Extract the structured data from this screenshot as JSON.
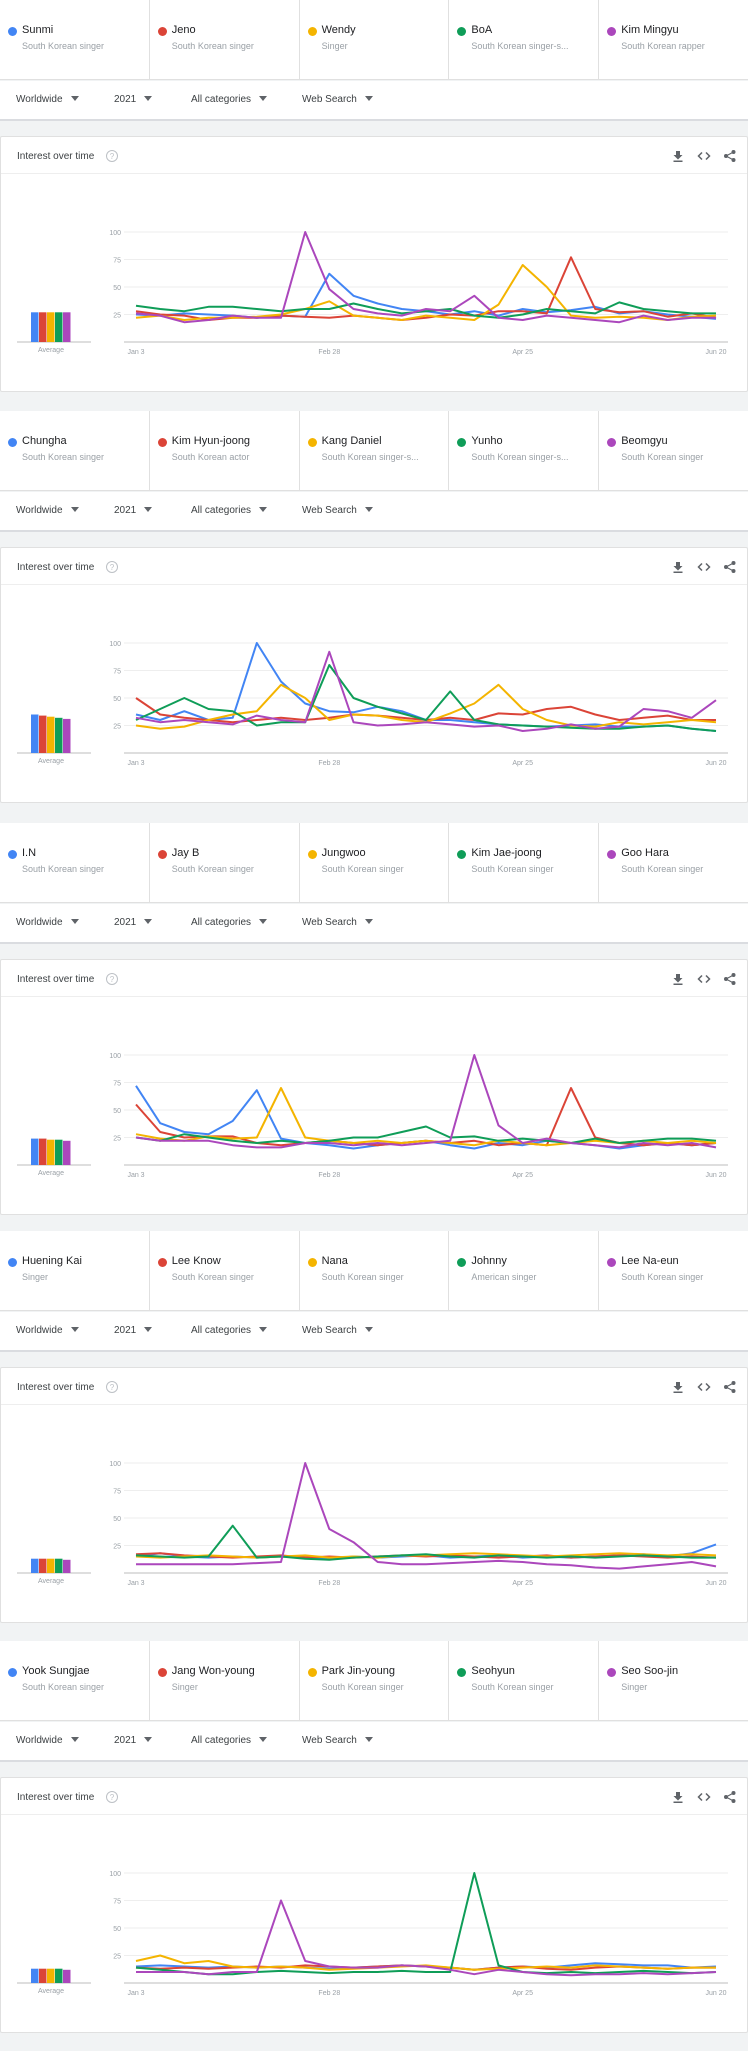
{
  "common": {
    "location": "Worldwide",
    "period": "2021",
    "category": "All categories",
    "search_type": "Web Search",
    "card_title": "Interest over time",
    "average_label": "Average",
    "help_glyph": "?"
  },
  "colors": [
    "#4285f4",
    "#db4437",
    "#f4b400",
    "#0f9d58",
    "#ab47bc"
  ],
  "icons": [
    "download-icon",
    "embed-icon",
    "share-icon",
    "help-icon",
    "dropdown-caret-icon"
  ],
  "comparisons": [
    {
      "terms": [
        {
          "name": "Sunmi",
          "desc": "South Korean singer"
        },
        {
          "name": "Jeno",
          "desc": "South Korean singer"
        },
        {
          "name": "Wendy",
          "desc": "Singer"
        },
        {
          "name": "BoA",
          "desc": "South Korean singer-s..."
        },
        {
          "name": "Kim Mingyu",
          "desc": "South Korean rapper"
        }
      ]
    },
    {
      "terms": [
        {
          "name": "Chungha",
          "desc": "South Korean singer"
        },
        {
          "name": "Kim Hyun-joong",
          "desc": "South Korean actor"
        },
        {
          "name": "Kang Daniel",
          "desc": "South Korean singer-s..."
        },
        {
          "name": "Yunho",
          "desc": "South Korean singer-s..."
        },
        {
          "name": "Beomgyu",
          "desc": "South Korean singer"
        }
      ]
    },
    {
      "terms": [
        {
          "name": "I.N",
          "desc": "South Korean singer"
        },
        {
          "name": "Jay B",
          "desc": "South Korean singer"
        },
        {
          "name": "Jungwoo",
          "desc": "South Korean singer"
        },
        {
          "name": "Kim Jae-joong",
          "desc": "South Korean singer"
        },
        {
          "name": "Goo Hara",
          "desc": "South Korean singer"
        }
      ]
    },
    {
      "terms": [
        {
          "name": "Huening Kai",
          "desc": "Singer"
        },
        {
          "name": "Lee Know",
          "desc": "South Korean singer"
        },
        {
          "name": "Nana",
          "desc": "South Korean singer"
        },
        {
          "name": "Johnny",
          "desc": "American singer"
        },
        {
          "name": "Lee Na-eun",
          "desc": "South Korean singer"
        }
      ]
    },
    {
      "terms": [
        {
          "name": "Yook Sungjae",
          "desc": "South Korean singer"
        },
        {
          "name": "Jang Won-young",
          "desc": "Singer"
        },
        {
          "name": "Park Jin-young",
          "desc": "South Korean singer"
        },
        {
          "name": "Seohyun",
          "desc": "South Korean singer"
        },
        {
          "name": "Seo Soo-jin",
          "desc": "Singer"
        }
      ]
    }
  ],
  "chart_data": [
    {
      "type": "line",
      "x_ticks": [
        "Jan 3",
        "Feb 28",
        "Apr 25",
        "Jun 20"
      ],
      "x_tick_index": [
        0,
        8,
        16,
        24
      ],
      "y_ticks": [
        25,
        50,
        75,
        100
      ],
      "ylim": [
        0,
        100
      ],
      "grid": true,
      "averages": [
        27,
        27,
        27,
        27,
        27
      ],
      "series": [
        {
          "name": "Sunmi",
          "values": [
            25,
            24,
            26,
            25,
            24,
            22,
            24,
            23,
            62,
            42,
            35,
            30,
            28,
            25,
            28,
            24,
            30,
            27,
            29,
            32,
            26,
            28,
            25,
            23,
            21
          ]
        },
        {
          "name": "Jeno",
          "values": [
            28,
            25,
            24,
            20,
            22,
            22,
            24,
            23,
            22,
            24,
            22,
            20,
            22,
            25,
            24,
            28,
            28,
            26,
            77,
            30,
            27,
            28,
            23,
            26,
            22
          ]
        },
        {
          "name": "Wendy",
          "values": [
            22,
            24,
            20,
            22,
            22,
            23,
            25,
            30,
            37,
            24,
            22,
            20,
            24,
            22,
            20,
            34,
            70,
            50,
            24,
            22,
            23,
            22,
            20,
            23,
            24
          ]
        },
        {
          "name": "BoA",
          "values": [
            33,
            30,
            28,
            32,
            32,
            30,
            28,
            30,
            30,
            35,
            30,
            26,
            28,
            30,
            24,
            22,
            25,
            30,
            28,
            26,
            36,
            30,
            28,
            26,
            26
          ]
        },
        {
          "name": "Kim Mingyu",
          "values": [
            26,
            24,
            18,
            20,
            24,
            22,
            22,
            100,
            48,
            30,
            26,
            24,
            30,
            28,
            42,
            22,
            20,
            24,
            22,
            20,
            18,
            24,
            20,
            22,
            22
          ]
        }
      ]
    },
    {
      "type": "line",
      "x_ticks": [
        "Jan 3",
        "Feb 28",
        "Apr 25",
        "Jun 20"
      ],
      "x_tick_index": [
        0,
        8,
        16,
        24
      ],
      "y_ticks": [
        25,
        50,
        75,
        100
      ],
      "ylim": [
        0,
        100
      ],
      "grid": true,
      "averages": [
        35,
        34,
        33,
        32,
        31
      ],
      "series": [
        {
          "name": "Chungha",
          "values": [
            35,
            30,
            38,
            30,
            32,
            100,
            65,
            45,
            38,
            37,
            42,
            38,
            30,
            30,
            28,
            26,
            25,
            24,
            25,
            26,
            24,
            24,
            25,
            22,
            20
          ]
        },
        {
          "name": "Kim Hyun-joong",
          "values": [
            50,
            35,
            32,
            30,
            28,
            30,
            32,
            30,
            32,
            35,
            34,
            32,
            30,
            32,
            30,
            36,
            35,
            40,
            42,
            35,
            30,
            32,
            34,
            30,
            30
          ]
        },
        {
          "name": "Kang Daniel",
          "values": [
            25,
            22,
            24,
            30,
            35,
            38,
            62,
            50,
            30,
            35,
            34,
            30,
            28,
            36,
            45,
            62,
            40,
            30,
            25,
            24,
            28,
            26,
            28,
            30,
            28
          ]
        },
        {
          "name": "Yunho",
          "values": [
            30,
            40,
            50,
            40,
            38,
            25,
            28,
            28,
            80,
            50,
            42,
            36,
            30,
            56,
            30,
            26,
            25,
            24,
            23,
            22,
            22,
            24,
            25,
            22,
            20
          ]
        },
        {
          "name": "Beomgyu",
          "values": [
            32,
            28,
            30,
            28,
            26,
            34,
            30,
            28,
            92,
            28,
            25,
            26,
            28,
            26,
            24,
            25,
            20,
            22,
            26,
            22,
            24,
            40,
            38,
            32,
            48
          ]
        }
      ]
    },
    {
      "type": "line",
      "x_ticks": [
        "Jan 3",
        "Feb 28",
        "Apr 25",
        "Jun 20"
      ],
      "x_tick_index": [
        0,
        8,
        16,
        24
      ],
      "y_ticks": [
        25,
        50,
        75,
        100
      ],
      "ylim": [
        0,
        100
      ],
      "grid": true,
      "averages": [
        24,
        24,
        23,
        23,
        22
      ],
      "series": [
        {
          "name": "I.N",
          "values": [
            72,
            38,
            30,
            28,
            40,
            68,
            24,
            20,
            18,
            15,
            18,
            20,
            22,
            18,
            15,
            20,
            18,
            22,
            20,
            18,
            15,
            18,
            20,
            18,
            20
          ]
        },
        {
          "name": "Jay B",
          "values": [
            55,
            30,
            25,
            26,
            26,
            20,
            18,
            20,
            22,
            20,
            18,
            20,
            22,
            20,
            22,
            18,
            20,
            18,
            70,
            25,
            20,
            18,
            20,
            18,
            20
          ]
        },
        {
          "name": "Jungwoo",
          "values": [
            28,
            24,
            22,
            26,
            24,
            25,
            70,
            25,
            22,
            20,
            22,
            20,
            22,
            20,
            18,
            22,
            20,
            18,
            20,
            22,
            20,
            22,
            20,
            22,
            20
          ]
        },
        {
          "name": "Kim Jae-joong",
          "values": [
            25,
            22,
            28,
            25,
            22,
            20,
            22,
            20,
            22,
            25,
            25,
            30,
            35,
            25,
            26,
            22,
            24,
            22,
            20,
            24,
            20,
            22,
            24,
            24,
            22
          ]
        },
        {
          "name": "Goo Hara",
          "values": [
            25,
            22,
            22,
            22,
            18,
            16,
            16,
            20,
            20,
            18,
            20,
            18,
            20,
            22,
            100,
            36,
            20,
            24,
            20,
            18,
            16,
            20,
            18,
            20,
            16
          ]
        }
      ]
    },
    {
      "type": "line",
      "x_ticks": [
        "Jan 3",
        "Feb 28",
        "Apr 25",
        "Jun 20"
      ],
      "x_tick_index": [
        0,
        8,
        16,
        24
      ],
      "y_ticks": [
        25,
        50,
        75,
        100
      ],
      "ylim": [
        0,
        100
      ],
      "grid": true,
      "averages": [
        13,
        13,
        13,
        13,
        12
      ],
      "series": [
        {
          "name": "Huening Kai",
          "values": [
            15,
            18,
            15,
            14,
            15,
            14,
            15,
            14,
            13,
            15,
            14,
            15,
            16,
            14,
            15,
            16,
            14,
            15,
            14,
            15,
            16,
            17,
            15,
            18,
            26
          ]
        },
        {
          "name": "Lee Know",
          "values": [
            17,
            18,
            16,
            15,
            14,
            15,
            16,
            14,
            15,
            14,
            15,
            16,
            15,
            16,
            15,
            14,
            15,
            16,
            14,
            15,
            16,
            15,
            14,
            15,
            14
          ]
        },
        {
          "name": "Nana",
          "values": [
            15,
            14,
            15,
            16,
            15,
            14,
            15,
            16,
            14,
            15,
            14,
            16,
            16,
            17,
            18,
            17,
            16,
            15,
            16,
            17,
            18,
            17,
            16,
            17,
            16
          ]
        },
        {
          "name": "Johnny",
          "values": [
            16,
            15,
            14,
            15,
            43,
            14,
            15,
            13,
            12,
            14,
            15,
            16,
            17,
            15,
            14,
            16,
            15,
            14,
            15,
            14,
            15,
            16,
            15,
            14,
            14
          ]
        },
        {
          "name": "Lee Na-eun",
          "values": [
            8,
            8,
            8,
            8,
            8,
            9,
            10,
            100,
            40,
            28,
            10,
            8,
            8,
            9,
            10,
            11,
            10,
            8,
            7,
            5,
            4,
            6,
            8,
            10,
            6
          ]
        }
      ]
    },
    {
      "type": "line",
      "x_ticks": [
        "Jan 3",
        "Feb 28",
        "Apr 25",
        "Jun 20"
      ],
      "x_tick_index": [
        0,
        8,
        16,
        24
      ],
      "y_ticks": [
        25,
        50,
        75,
        100
      ],
      "ylim": [
        0,
        100
      ],
      "grid": true,
      "averages": [
        13,
        13,
        13,
        13,
        12
      ],
      "series": [
        {
          "name": "Yook Sungjae",
          "values": [
            15,
            16,
            15,
            14,
            15,
            14,
            15,
            14,
            13,
            14,
            15,
            16,
            15,
            14,
            12,
            14,
            15,
            14,
            16,
            18,
            17,
            16,
            16,
            14,
            15
          ]
        },
        {
          "name": "Jang Won-young",
          "values": [
            14,
            13,
            14,
            13,
            14,
            15,
            14,
            16,
            15,
            14,
            15,
            16,
            15,
            14,
            12,
            14,
            15,
            13,
            12,
            14,
            15,
            14,
            13,
            14,
            14
          ]
        },
        {
          "name": "Park Jin-young",
          "values": [
            20,
            25,
            18,
            20,
            15,
            14,
            15,
            14,
            12,
            13,
            14,
            15,
            16,
            14,
            12,
            13,
            14,
            15,
            14,
            16,
            15,
            14,
            13,
            14,
            14
          ]
        },
        {
          "name": "Seohyun",
          "values": [
            14,
            12,
            10,
            8,
            8,
            10,
            11,
            10,
            9,
            10,
            10,
            11,
            10,
            10,
            100,
            16,
            10,
            9,
            10,
            9,
            10,
            11,
            10,
            9,
            10
          ]
        },
        {
          "name": "Seo Soo-jin",
          "values": [
            10,
            10,
            10,
            8,
            10,
            10,
            75,
            20,
            15,
            14,
            14,
            16,
            15,
            12,
            8,
            12,
            10,
            8,
            7,
            8,
            8,
            9,
            8,
            9,
            10
          ]
        }
      ]
    }
  ]
}
